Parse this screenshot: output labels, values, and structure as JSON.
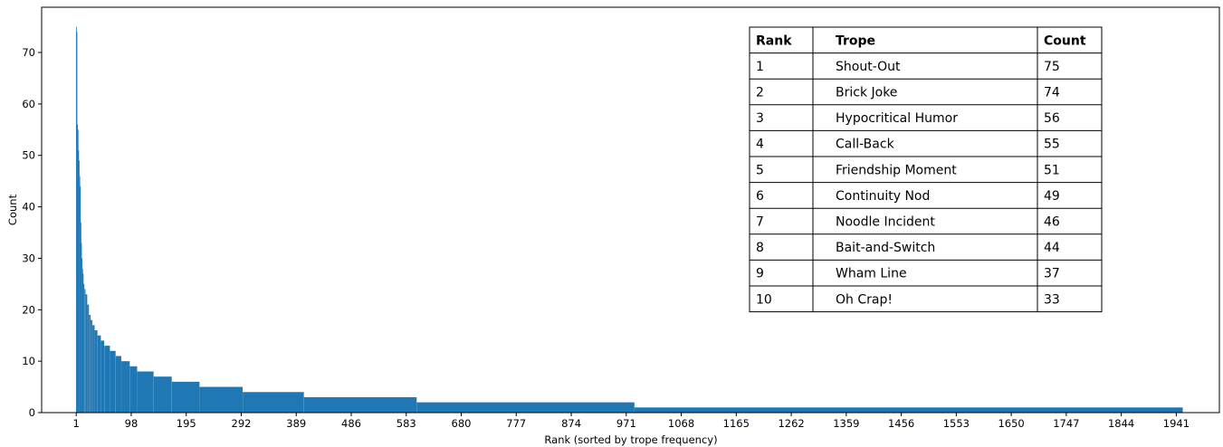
{
  "chart_data": {
    "type": "bar",
    "xlabel": "Rank (sorted by trope frequency)",
    "ylabel": "Count",
    "xlim": [
      -60,
      2017
    ],
    "ylim": [
      0,
      78.8
    ],
    "grid": false,
    "legend": null,
    "color": "#1f77b4",
    "x_ticks": [
      1,
      98,
      195,
      292,
      389,
      486,
      583,
      680,
      777,
      874,
      971,
      1068,
      1165,
      1262,
      1359,
      1456,
      1553,
      1650,
      1747,
      1844,
      1941
    ],
    "y_ticks": [
      0,
      10,
      20,
      30,
      40,
      50,
      60,
      70
    ],
    "segments": [
      {
        "from": 1,
        "to": 1,
        "value": 75
      },
      {
        "from": 2,
        "to": 2,
        "value": 74
      },
      {
        "from": 3,
        "to": 3,
        "value": 56
      },
      {
        "from": 4,
        "to": 4,
        "value": 55
      },
      {
        "from": 5,
        "to": 5,
        "value": 51
      },
      {
        "from": 6,
        "to": 6,
        "value": 49
      },
      {
        "from": 7,
        "to": 7,
        "value": 46
      },
      {
        "from": 8,
        "to": 8,
        "value": 44
      },
      {
        "from": 9,
        "to": 9,
        "value": 37
      },
      {
        "from": 10,
        "to": 10,
        "value": 33
      },
      {
        "from": 11,
        "to": 11,
        "value": 30
      },
      {
        "from": 12,
        "to": 12,
        "value": 28
      },
      {
        "from": 13,
        "to": 13,
        "value": 27
      },
      {
        "from": 14,
        "to": 15,
        "value": 25
      },
      {
        "from": 16,
        "to": 17,
        "value": 24
      },
      {
        "from": 18,
        "to": 20,
        "value": 23
      },
      {
        "from": 21,
        "to": 23,
        "value": 21
      },
      {
        "from": 24,
        "to": 26,
        "value": 19
      },
      {
        "from": 27,
        "to": 29,
        "value": 18
      },
      {
        "from": 30,
        "to": 33,
        "value": 17
      },
      {
        "from": 34,
        "to": 38,
        "value": 16
      },
      {
        "from": 39,
        "to": 44,
        "value": 15
      },
      {
        "from": 45,
        "to": 50,
        "value": 14
      },
      {
        "from": 51,
        "to": 60,
        "value": 13
      },
      {
        "from": 61,
        "to": 70,
        "value": 12
      },
      {
        "from": 71,
        "to": 80,
        "value": 11
      },
      {
        "from": 81,
        "to": 95,
        "value": 10
      },
      {
        "from": 96,
        "to": 108,
        "value": 9
      },
      {
        "from": 109,
        "to": 137,
        "value": 8
      },
      {
        "from": 138,
        "to": 169,
        "value": 7
      },
      {
        "from": 170,
        "to": 218,
        "value": 6
      },
      {
        "from": 219,
        "to": 294,
        "value": 5
      },
      {
        "from": 295,
        "to": 402,
        "value": 4
      },
      {
        "from": 403,
        "to": 601,
        "value": 3
      },
      {
        "from": 602,
        "to": 985,
        "value": 2
      },
      {
        "from": 986,
        "to": 1952,
        "value": 1
      }
    ],
    "table": {
      "headers": [
        "Rank",
        "Trope",
        "Count"
      ],
      "rows": [
        [
          "1",
          "Shout-Out",
          "75"
        ],
        [
          "2",
          "Brick Joke",
          "74"
        ],
        [
          "3",
          "Hypocritical Humor",
          "56"
        ],
        [
          "4",
          "Call-Back",
          "55"
        ],
        [
          "5",
          "Friendship Moment",
          "51"
        ],
        [
          "6",
          "Continuity Nod",
          "49"
        ],
        [
          "7",
          "Noodle Incident",
          "46"
        ],
        [
          "8",
          "Bait-and-Switch",
          "44"
        ],
        [
          "9",
          "Wham Line",
          "37"
        ],
        [
          "10",
          "Oh Crap!",
          "33"
        ]
      ]
    }
  }
}
